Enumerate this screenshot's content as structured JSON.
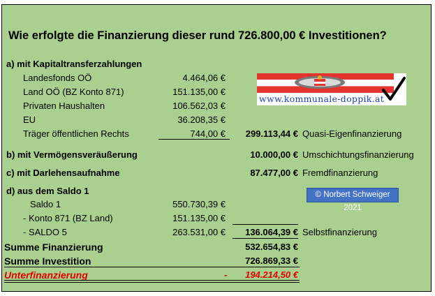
{
  "title": "Wie erfolgte die Finanzierung dieser rund 726.800,00 € Investitionen?",
  "section_a": {
    "heading": "a) mit Kapitaltransferzahlungen",
    "rows": [
      {
        "label": "Landesfonds OÖ",
        "value": "4.464,06 €"
      },
      {
        "label": "Land OÖ (BZ Konto 871)",
        "value": "151.135,00 €"
      },
      {
        "label": "Privaten Haushalten",
        "value": "106.562,03 €"
      },
      {
        "label": "EU",
        "value": "36.208,35 €"
      },
      {
        "label": "Träger öffentlichen Rechts",
        "value": "744,00 €"
      }
    ],
    "total": "299.113,44 €",
    "type": "Quasi-Eigenfinanzierung"
  },
  "section_b": {
    "heading": "b) mit Vermögensveräußerung",
    "total": "10.000,00 €",
    "type": "Umschichtungsfinanzierung"
  },
  "section_c": {
    "heading": "c) mit Darlehensaufnahme",
    "total": "87.477,00 €",
    "type": "Fremdfinanzierung"
  },
  "section_d": {
    "heading": "d) aus dem Saldo 1",
    "rows": [
      {
        "label": "Saldo 1",
        "value": "550.730,39 €"
      },
      {
        "label": "- Konto 871 (BZ Land)",
        "value": "151.135,00 €"
      },
      {
        "label": "- SALDO 5",
        "value": "263.531,00 €"
      }
    ],
    "total": "136.064,39 €",
    "type": "Selbstfinanzierung"
  },
  "summary": {
    "financing_label": "Summe Finanzierung",
    "financing_value": "532.654,83 €",
    "investment_label": "Summe Investition",
    "investment_value": "726.869,33 €",
    "shortfall_label": "Unterfinanzierung",
    "shortfall_sign": "-",
    "shortfall_value": "194.214,50 €"
  },
  "logo": {
    "url_text": "www.kommunale-doppik.at"
  },
  "copyright": "© Norbert Schweiger 2021",
  "colors": {
    "sheet_bg": "#a9d08e",
    "negative": "#e00000",
    "badge": "#4472c4"
  }
}
